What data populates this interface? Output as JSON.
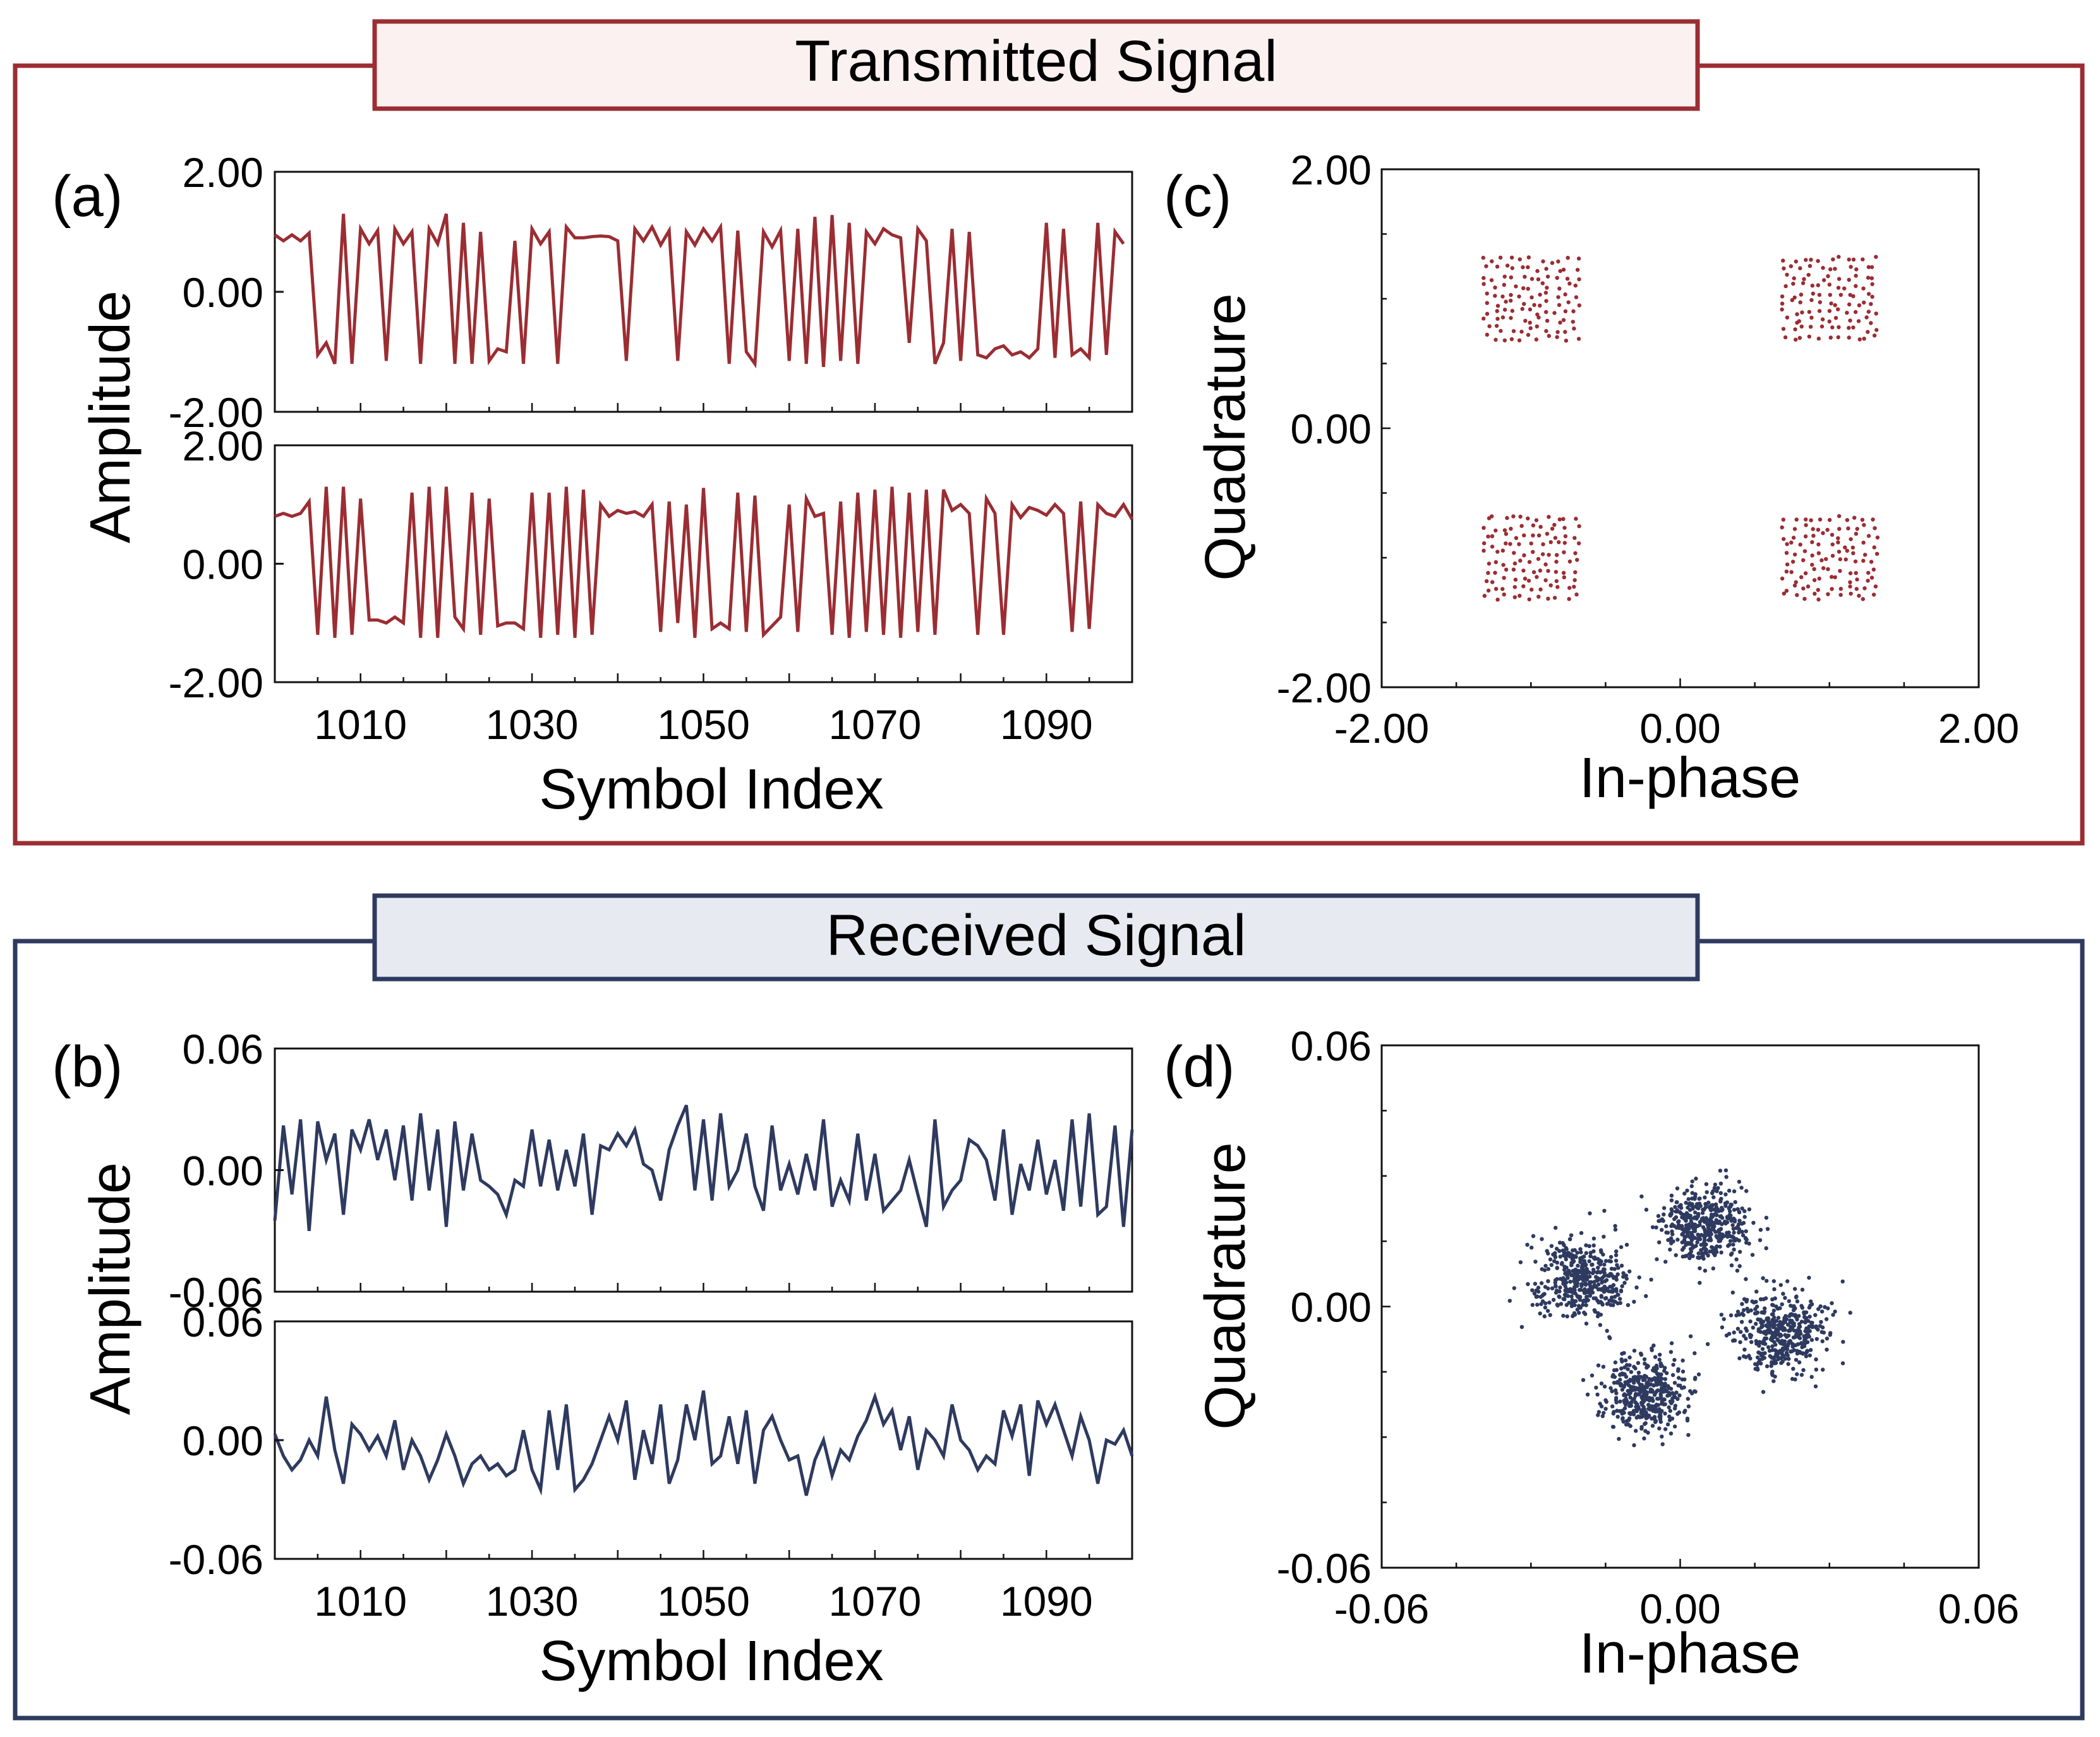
{
  "colors": {
    "transmitted": "#9b2d33",
    "received": "#2e3a5f",
    "transmitted_fill": "#fbf1f1",
    "received_fill": "#e7eaf1"
  },
  "sections": {
    "transmitted_title": "Transmitted Signal",
    "received_title": "Received Signal"
  },
  "panels": {
    "a": "(a)",
    "b": "(b)",
    "c": "(c)",
    "d": "(d)"
  },
  "chart_data": [
    {
      "id": "a-top",
      "type": "line",
      "xlabel": "Symbol Index",
      "ylabel": "Amplitude",
      "xlim": [
        1000,
        1100
      ],
      "ylim": [
        -2,
        2
      ],
      "yticks": [
        2,
        0,
        -2
      ],
      "ytick_labels": [
        "2.00",
        "0.00",
        "-2.00"
      ],
      "xticks": [
        1010,
        1030,
        1050,
        1070,
        1090
      ],
      "xtick_labels": [
        "1010",
        "1030",
        "1050",
        "1070",
        "1090"
      ],
      "x_start": 1000,
      "values": [
        0.95,
        0.85,
        0.95,
        0.85,
        0.98,
        -1.05,
        -0.85,
        -1.2,
        1.3,
        -1.2,
        1.05,
        0.8,
        1.02,
        -1.15,
        1.05,
        0.8,
        1.0,
        -1.2,
        1.05,
        0.8,
        1.3,
        -1.2,
        1.15,
        -1.2,
        1.0,
        -1.15,
        -0.95,
        -1.0,
        0.85,
        -1.2,
        1.05,
        0.8,
        1.0,
        -1.2,
        1.08,
        0.9,
        0.9,
        0.92,
        0.93,
        0.92,
        0.85,
        -1.15,
        1.05,
        0.85,
        1.08,
        0.78,
        1.02,
        -1.15,
        1.0,
        0.78,
        1.05,
        0.85,
        1.08,
        -1.2,
        1.02,
        -1.0,
        -1.2,
        1.0,
        0.75,
        1.02,
        -1.15,
        1.05,
        -1.2,
        1.25,
        -1.25,
        1.28,
        -1.15,
        1.15,
        -1.2,
        1.0,
        0.8,
        1.05,
        0.95,
        0.9,
        -0.85,
        1.05,
        0.85,
        -1.2,
        -0.85,
        1.05,
        -1.15,
        1.0,
        -1.05,
        -1.1,
        -0.95,
        -0.9,
        -1.05,
        -1.0,
        -1.1,
        -0.95,
        1.15,
        -1.1,
        1.05,
        -1.05,
        -0.95,
        -1.1,
        1.15,
        -1.05,
        1.0,
        0.8
      ],
      "series_name": "transmitted-I"
    },
    {
      "id": "a-bottom",
      "type": "line",
      "xlabel": "Symbol Index",
      "ylabel": "Amplitude",
      "xlim": [
        1000,
        1100
      ],
      "ylim": [
        -2,
        2
      ],
      "yticks": [
        2,
        0,
        -2
      ],
      "ytick_labels": [
        "2.00",
        "0.00",
        "-2.00"
      ],
      "xticks": [
        1010,
        1030,
        1050,
        1070,
        1090
      ],
      "xtick_labels": [
        "1010",
        "1030",
        "1050",
        "1070",
        "1090"
      ],
      "x_start": 1000,
      "values": [
        0.8,
        0.85,
        0.8,
        0.85,
        1.05,
        -1.2,
        1.3,
        -1.25,
        1.3,
        -1.2,
        1.1,
        -0.95,
        -0.95,
        -1.0,
        -0.9,
        -1.0,
        1.2,
        -1.25,
        1.3,
        -1.25,
        1.3,
        -0.9,
        -1.1,
        1.2,
        -1.2,
        1.1,
        -1.05,
        -1.0,
        -1.0,
        -1.1,
        1.2,
        -1.25,
        1.2,
        -1.2,
        1.3,
        -1.25,
        1.25,
        -1.2,
        1.0,
        0.8,
        0.9,
        0.85,
        0.88,
        0.8,
        1.0,
        -1.15,
        1.05,
        -1.0,
        1.0,
        -1.25,
        1.28,
        -1.1,
        -1.0,
        -1.1,
        1.2,
        -1.15,
        1.15,
        -1.2,
        -1.05,
        -0.9,
        1.0,
        -1.15,
        1.1,
        0.8,
        0.85,
        -1.2,
        1.05,
        -1.25,
        1.2,
        -1.15,
        1.25,
        -1.2,
        1.3,
        -1.25,
        1.2,
        -1.15,
        1.25,
        -1.2,
        1.25,
        0.9,
        1.0,
        0.85,
        -1.2,
        1.1,
        0.85,
        -1.2,
        1.0,
        0.78,
        0.95,
        0.9,
        0.82,
        1.0,
        0.85,
        -1.15,
        1.05,
        -1.1,
        1.0,
        0.85,
        0.8,
        1.0,
        0.75
      ],
      "series_name": "transmitted-Q"
    },
    {
      "id": "c",
      "type": "scatter",
      "xlabel": "In-phase",
      "ylabel": "Quadrature",
      "xlim": [
        -2,
        2
      ],
      "ylim": [
        -2,
        2
      ],
      "xticks": [
        -2,
        0,
        2
      ],
      "xtick_labels": [
        "-2.00",
        "0.00",
        "2.00"
      ],
      "yticks": [
        2,
        0,
        -2
      ],
      "ytick_labels": [
        "2.00",
        "0.00",
        "-2.00"
      ],
      "clusters": [
        {
          "center": [
            -1.0,
            1.0
          ],
          "spread": 0.3
        },
        {
          "center": [
            1.0,
            1.0
          ],
          "spread": 0.3
        },
        {
          "center": [
            -1.0,
            -1.0
          ],
          "spread": 0.3
        },
        {
          "center": [
            1.0,
            -1.0
          ],
          "spread": 0.3
        }
      ],
      "points_per_cluster": 110,
      "distribution": "uniform-grid",
      "series_name": "transmitted-constellation"
    },
    {
      "id": "b-top",
      "type": "line",
      "xlabel": "Symbol Index",
      "ylabel": "Amplitude",
      "xlim": [
        1000,
        1100
      ],
      "ylim": [
        -0.06,
        0.06
      ],
      "yticks": [
        0.06,
        0,
        -0.06
      ],
      "ytick_labels": [
        "0.06",
        "0.00",
        "-0.06"
      ],
      "xticks": [
        1010,
        1030,
        1050,
        1070,
        1090
      ],
      "xtick_labels": [
        "1010",
        "1030",
        "1050",
        "1070",
        "1090"
      ],
      "x_start": 1000,
      "values": [
        -0.025,
        0.022,
        -0.012,
        0.025,
        -0.03,
        0.024,
        0.005,
        0.018,
        -0.022,
        0.02,
        0.01,
        0.025,
        0.005,
        0.02,
        -0.005,
        0.022,
        -0.015,
        0.028,
        -0.01,
        0.02,
        -0.028,
        0.024,
        -0.01,
        0.018,
        -0.005,
        -0.008,
        -0.012,
        -0.022,
        -0.005,
        -0.008,
        0.02,
        -0.008,
        0.015,
        -0.01,
        0.01,
        -0.008,
        0.018,
        -0.022,
        0.012,
        0.01,
        0.018,
        0.012,
        0.02,
        0.003,
        0.0,
        -0.015,
        0.01,
        0.022,
        0.032,
        -0.01,
        0.025,
        -0.015,
        0.028,
        -0.008,
        0.0,
        0.018,
        -0.008,
        -0.02,
        0.022,
        -0.01,
        0.003,
        -0.012,
        0.008,
        -0.01,
        0.025,
        -0.018,
        -0.005,
        -0.015,
        0.018,
        -0.015,
        0.008,
        -0.02,
        -0.015,
        -0.01,
        0.005,
        -0.012,
        -0.028,
        0.025,
        -0.018,
        -0.01,
        -0.005,
        0.015,
        0.012,
        0.005,
        -0.015,
        0.02,
        -0.022,
        0.003,
        -0.01,
        0.015,
        -0.012,
        0.005,
        -0.02,
        0.025,
        -0.018,
        0.028,
        -0.022,
        -0.018,
        0.022,
        -0.028,
        0.02
      ],
      "series_name": "received-I"
    },
    {
      "id": "b-bottom",
      "type": "line",
      "xlabel": "Symbol Index",
      "ylabel": "Amplitude",
      "xlim": [
        1000,
        1100
      ],
      "ylim": [
        -0.06,
        0.06
      ],
      "yticks": [
        0.06,
        0,
        -0.06
      ],
      "ytick_labels": [
        "0.06",
        "0.00",
        "-0.06"
      ],
      "xticks": [
        1010,
        1030,
        1050,
        1070,
        1090
      ],
      "xtick_labels": [
        "1010",
        "1030",
        "1050",
        "1070",
        "1090"
      ],
      "x_start": 1000,
      "values": [
        0.003,
        -0.008,
        -0.015,
        -0.01,
        0.0,
        -0.008,
        0.022,
        -0.005,
        -0.022,
        0.008,
        0.003,
        -0.005,
        0.002,
        -0.008,
        0.01,
        -0.015,
        0.0,
        -0.008,
        -0.02,
        -0.01,
        0.003,
        -0.008,
        -0.022,
        -0.012,
        -0.008,
        -0.015,
        -0.012,
        -0.018,
        -0.015,
        0.005,
        -0.015,
        -0.025,
        0.015,
        -0.015,
        0.018,
        -0.025,
        -0.02,
        -0.012,
        0.0,
        0.012,
        0.0,
        0.02,
        -0.02,
        0.005,
        -0.012,
        0.018,
        -0.022,
        -0.01,
        0.018,
        0.0,
        0.025,
        -0.012,
        -0.008,
        0.012,
        -0.012,
        0.015,
        -0.022,
        0.005,
        0.012,
        0.0,
        -0.01,
        -0.008,
        -0.028,
        -0.01,
        0.0,
        -0.018,
        -0.005,
        -0.01,
        0.002,
        0.01,
        0.022,
        0.008,
        0.015,
        -0.005,
        0.012,
        -0.015,
        0.005,
        0.0,
        -0.008,
        0.018,
        0.0,
        -0.005,
        -0.015,
        -0.008,
        -0.012,
        0.015,
        0.002,
        0.018,
        -0.018,
        0.02,
        0.008,
        0.018,
        0.005,
        -0.008,
        0.012,
        0.0,
        -0.022,
        0.0,
        -0.002,
        0.005,
        -0.008
      ],
      "series_name": "received-Q"
    },
    {
      "id": "d",
      "type": "scatter",
      "xlabel": "In-phase",
      "ylabel": "Quadrature",
      "xlim": [
        -0.06,
        0.06
      ],
      "ylim": [
        -0.06,
        0.06
      ],
      "xticks": [
        -0.06,
        0,
        0.06
      ],
      "xtick_labels": [
        "-0.06",
        "0.00",
        "0.06"
      ],
      "yticks": [
        0.06,
        0,
        -0.06
      ],
      "ytick_labels": [
        "0.06",
        "0.00",
        "-0.06"
      ],
      "clusters": [
        {
          "center": [
            0.005,
            0.019
          ],
          "spread": 0.0045
        },
        {
          "center": [
            -0.02,
            0.006
          ],
          "spread": 0.0045
        },
        {
          "center": [
            0.02,
            -0.006
          ],
          "spread": 0.0045
        },
        {
          "center": [
            -0.007,
            -0.02
          ],
          "spread": 0.0045
        }
      ],
      "points_per_cluster": 430,
      "distribution": "gaussian",
      "series_name": "received-constellation"
    }
  ]
}
